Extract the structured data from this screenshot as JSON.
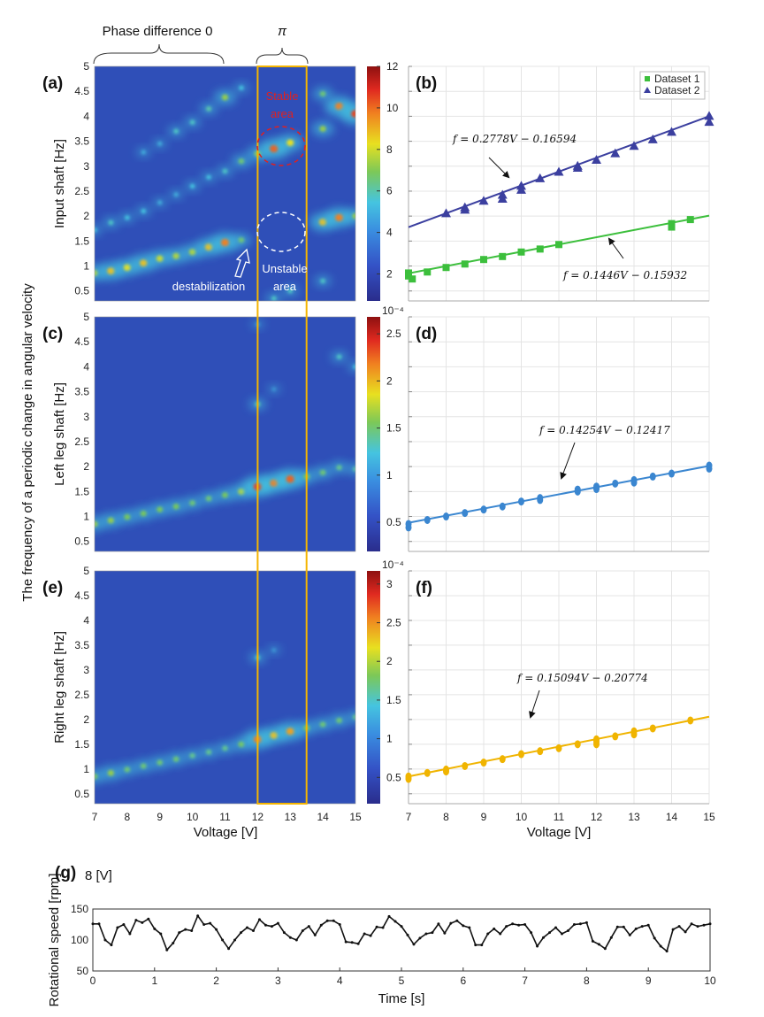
{
  "figure": {
    "main_ylabel": "The frequency of a periodic change in angular velocity",
    "xlabel": "Voltage [V]",
    "bracket_phase0": "Phase difference 0",
    "bracket_pi": "π",
    "highlight_color": "#f5b500",
    "highlight_range_V": [
      12,
      13.5
    ],
    "annotations": {
      "stable": [
        "Stable",
        "area"
      ],
      "unstable": [
        "Unstable",
        "area"
      ],
      "destabilization": "destabilization"
    }
  },
  "chart_data": [
    {
      "panel": "(a)",
      "type": "heatmap",
      "ylabel": "Input shaft  [Hz]",
      "xlim": [
        7,
        15
      ],
      "ylim": [
        0.3,
        5
      ],
      "xticks": [
        7,
        8,
        9,
        10,
        11,
        12,
        13,
        14,
        15
      ],
      "yticks": [
        0.5,
        1,
        1.5,
        2,
        2.5,
        3,
        3.5,
        4,
        4.5,
        5
      ],
      "colorbar": {
        "range": [
          0.7,
          12
        ],
        "ticks": [
          2,
          4,
          6,
          8,
          10,
          12
        ],
        "exponent": ""
      },
      "peaks": [
        [
          7,
          0.86,
          0.6
        ],
        [
          7.5,
          0.9,
          0.75
        ],
        [
          8,
          0.97,
          0.7
        ],
        [
          8.5,
          1.06,
          0.75
        ],
        [
          9,
          1.15,
          0.65
        ],
        [
          9.5,
          1.2,
          0.6
        ],
        [
          10,
          1.28,
          0.6
        ],
        [
          10.5,
          1.38,
          0.75
        ],
        [
          11,
          1.47,
          0.85
        ],
        [
          11.5,
          1.52,
          0.45
        ],
        [
          7,
          1.72,
          0.25
        ],
        [
          7.5,
          1.87,
          0.3
        ],
        [
          8,
          1.97,
          0.25
        ],
        [
          8.5,
          2.1,
          0.25
        ],
        [
          9,
          2.27,
          0.2
        ],
        [
          9.5,
          2.43,
          0.2
        ],
        [
          10,
          2.6,
          0.25
        ],
        [
          10.5,
          2.78,
          0.25
        ],
        [
          11,
          2.9,
          0.3
        ],
        [
          11.5,
          3.1,
          0.45
        ],
        [
          12,
          3.25,
          0.55
        ],
        [
          12.5,
          3.35,
          0.9
        ],
        [
          13,
          3.47,
          0.7
        ],
        [
          8.5,
          3.28,
          0.2
        ],
        [
          9,
          3.45,
          0.2
        ],
        [
          9.5,
          3.7,
          0.3
        ],
        [
          10,
          3.88,
          0.3
        ],
        [
          10.5,
          4.15,
          0.35
        ],
        [
          11,
          4.38,
          0.55
        ],
        [
          11.5,
          4.57,
          0.25
        ],
        [
          14,
          1.88,
          0.75
        ],
        [
          14.5,
          1.97,
          0.85
        ],
        [
          15,
          2.0,
          0.55
        ],
        [
          14,
          3.75,
          0.55
        ],
        [
          14,
          4.45,
          0.45
        ],
        [
          14.5,
          4.2,
          0.85
        ],
        [
          15,
          4.05,
          0.95
        ],
        [
          14,
          0.7,
          0.3
        ],
        [
          13,
          0.5,
          0.3
        ],
        [
          12.5,
          0.35,
          0.3
        ]
      ]
    },
    {
      "panel": "(b)",
      "type": "scatter",
      "xlim": [
        7,
        15
      ],
      "ylim": [
        0.3,
        5
      ],
      "legend": [
        "Dataset 1",
        "Dataset 2"
      ],
      "legend_position": "top-right",
      "grid": true,
      "series": [
        {
          "name": "Dataset 1",
          "color": "#3cbf3c",
          "marker": "square",
          "x": [
            7,
            7,
            7.1,
            7.5,
            8,
            8.5,
            9,
            9.5,
            10,
            10.5,
            11,
            14,
            14,
            14.5
          ],
          "y": [
            0.86,
            0.8,
            0.74,
            0.88,
            0.97,
            1.04,
            1.13,
            1.19,
            1.28,
            1.34,
            1.43,
            1.85,
            1.78,
            1.93
          ],
          "fit": {
            "slope": 0.1446,
            "intercept": -0.15932,
            "label": "f = 0.1446V − 0.15932"
          }
        },
        {
          "name": "Dataset 2",
          "color": "#3b3f9f",
          "marker": "triangle",
          "x": [
            8,
            8.5,
            8.5,
            9,
            9.5,
            9.5,
            10,
            10,
            10.5,
            11,
            11.5,
            11.5,
            12,
            12.5,
            13,
            13.5,
            14,
            15,
            15
          ],
          "y": [
            2.05,
            2.17,
            2.12,
            2.3,
            2.42,
            2.34,
            2.6,
            2.52,
            2.75,
            2.88,
            3.0,
            2.96,
            3.12,
            3.25,
            3.4,
            3.53,
            3.68,
            4.0,
            3.88
          ],
          "fit": {
            "slope": 0.2778,
            "intercept": -0.16594,
            "label": "f = 0.2778V − 0.16594"
          }
        }
      ]
    },
    {
      "panel": "(c)",
      "type": "heatmap",
      "ylabel": "Left leg shaft  [Hz]",
      "xlim": [
        7,
        15
      ],
      "ylim": [
        0.3,
        5
      ],
      "xticks": [
        7,
        8,
        9,
        10,
        11,
        12,
        13,
        14,
        15
      ],
      "yticks": [
        0.5,
        1,
        1.5,
        2,
        2.5,
        3,
        3.5,
        4,
        4.5,
        5
      ],
      "colorbar": {
        "range": [
          0.19,
          2.68
        ],
        "ticks": [
          0.5,
          1,
          1.5,
          2,
          2.5
        ],
        "exponent": "10⁻⁴"
      },
      "peaks": [
        [
          7,
          0.85,
          0.55
        ],
        [
          7.5,
          0.92,
          0.55
        ],
        [
          8,
          0.99,
          0.5
        ],
        [
          8.5,
          1.06,
          0.5
        ],
        [
          9,
          1.14,
          0.5
        ],
        [
          9.5,
          1.2,
          0.5
        ],
        [
          10,
          1.27,
          0.45
        ],
        [
          10.5,
          1.36,
          0.45
        ],
        [
          11,
          1.43,
          0.5
        ],
        [
          11.5,
          1.5,
          0.6
        ],
        [
          12,
          1.6,
          0.95
        ],
        [
          12.5,
          1.67,
          0.85
        ],
        [
          13,
          1.75,
          0.9
        ],
        [
          13.5,
          1.8,
          0.5
        ],
        [
          14,
          1.88,
          0.45
        ],
        [
          14.5,
          1.98,
          0.4
        ],
        [
          15,
          1.95,
          0.35
        ],
        [
          12,
          3.25,
          0.35
        ],
        [
          12.5,
          3.55,
          0.15
        ],
        [
          14.5,
          4.2,
          0.3
        ],
        [
          15,
          4.0,
          0.25
        ],
        [
          12,
          4.85,
          0.15
        ]
      ]
    },
    {
      "panel": "(d)",
      "type": "scatter",
      "xlim": [
        7,
        15
      ],
      "ylim": [
        0.3,
        5
      ],
      "grid": true,
      "series": [
        {
          "color": "#3a86d0",
          "marker": "circle",
          "x": [
            7,
            7,
            7.5,
            8,
            8.5,
            9,
            9.5,
            10,
            10.5,
            10.5,
            11.5,
            11.5,
            12,
            12,
            12.5,
            13,
            13,
            13.5,
            14,
            15,
            15
          ],
          "y": [
            0.85,
            0.78,
            0.93,
            1.0,
            1.07,
            1.14,
            1.2,
            1.3,
            1.37,
            1.33,
            1.54,
            1.5,
            1.6,
            1.55,
            1.66,
            1.73,
            1.68,
            1.8,
            1.86,
            2.02,
            1.96
          ],
          "fit": {
            "slope": 0.14254,
            "intercept": -0.12417,
            "label": "f = 0.14254V − 0.12417"
          }
        }
      ]
    },
    {
      "panel": "(e)",
      "type": "heatmap",
      "ylabel": "Right leg shaft [Hz]",
      "xlim": [
        7,
        15
      ],
      "ylim": [
        0.3,
        5
      ],
      "xticks": [
        7,
        8,
        9,
        10,
        11,
        12,
        13,
        14,
        15
      ],
      "yticks": [
        0.5,
        1,
        1.5,
        2,
        2.5,
        3,
        3.5,
        4,
        4.5,
        5
      ],
      "colorbar": {
        "range": [
          0.16,
          3.17
        ],
        "ticks": [
          0.5,
          1,
          1.5,
          2,
          2.5,
          3
        ],
        "exponent": "10⁻⁴"
      },
      "peaks": [
        [
          7,
          0.85,
          0.5
        ],
        [
          7.5,
          0.92,
          0.55
        ],
        [
          8,
          0.99,
          0.45
        ],
        [
          8.5,
          1.06,
          0.45
        ],
        [
          9,
          1.13,
          0.45
        ],
        [
          9.5,
          1.2,
          0.45
        ],
        [
          10,
          1.27,
          0.4
        ],
        [
          10.5,
          1.34,
          0.4
        ],
        [
          11,
          1.42,
          0.4
        ],
        [
          11.5,
          1.5,
          0.5
        ],
        [
          12,
          1.6,
          0.85
        ],
        [
          12.5,
          1.68,
          0.75
        ],
        [
          13,
          1.76,
          0.8
        ],
        [
          13.5,
          1.83,
          0.5
        ],
        [
          14,
          1.9,
          0.45
        ],
        [
          14.5,
          1.98,
          0.45
        ],
        [
          15,
          2.05,
          0.4
        ],
        [
          12,
          3.25,
          0.3
        ],
        [
          12.5,
          3.4,
          0.15
        ]
      ]
    },
    {
      "panel": "(f)",
      "type": "scatter",
      "xlim": [
        7,
        15
      ],
      "ylim": [
        0.3,
        5
      ],
      "grid": true,
      "series": [
        {
          "color": "#f0b400",
          "marker": "circle",
          "x": [
            7,
            7,
            7.5,
            8,
            8,
            8.5,
            9,
            9.5,
            10,
            10.5,
            11,
            11.5,
            12,
            12,
            12,
            12.5,
            13,
            13,
            13.5,
            14.5
          ],
          "y": [
            0.85,
            0.8,
            0.92,
            0.99,
            0.95,
            1.06,
            1.13,
            1.2,
            1.3,
            1.36,
            1.42,
            1.5,
            1.6,
            1.55,
            1.5,
            1.66,
            1.76,
            1.7,
            1.82,
            1.98
          ],
          "fit": {
            "slope": 0.15094,
            "intercept": -0.20774,
            "label": "f = 0.15094V − 0.20774"
          }
        }
      ]
    },
    {
      "panel": "(g)",
      "title": "8 [V]",
      "type": "line",
      "xlabel": "Time [s]",
      "ylabel": "Rotational speed [rpm]",
      "xlim": [
        0,
        10
      ],
      "ylim": [
        50,
        150
      ],
      "xticks": [
        0,
        1,
        2,
        3,
        4,
        5,
        6,
        7,
        8,
        9,
        10
      ],
      "yticks": [
        50,
        100,
        150
      ],
      "t_step": 0.1,
      "values": [
        126,
        126,
        100,
        92,
        120,
        125,
        110,
        132,
        128,
        134,
        118,
        110,
        84,
        95,
        112,
        117,
        115,
        139,
        125,
        127,
        117,
        100,
        86,
        100,
        112,
        120,
        115,
        133,
        124,
        122,
        127,
        112,
        104,
        100,
        115,
        122,
        108,
        124,
        131,
        131,
        125,
        97,
        96,
        94,
        110,
        107,
        121,
        120,
        138,
        130,
        122,
        108,
        93,
        103,
        110,
        112,
        126,
        111,
        127,
        131,
        123,
        120,
        92,
        92,
        110,
        118,
        110,
        122,
        126,
        124,
        125,
        112,
        90,
        104,
        112,
        120,
        110,
        115,
        125,
        126,
        128,
        98,
        93,
        86,
        104,
        121,
        121,
        108,
        118,
        122,
        124,
        103,
        90,
        82,
        117,
        122,
        113,
        126,
        122,
        124,
        126
      ]
    }
  ]
}
